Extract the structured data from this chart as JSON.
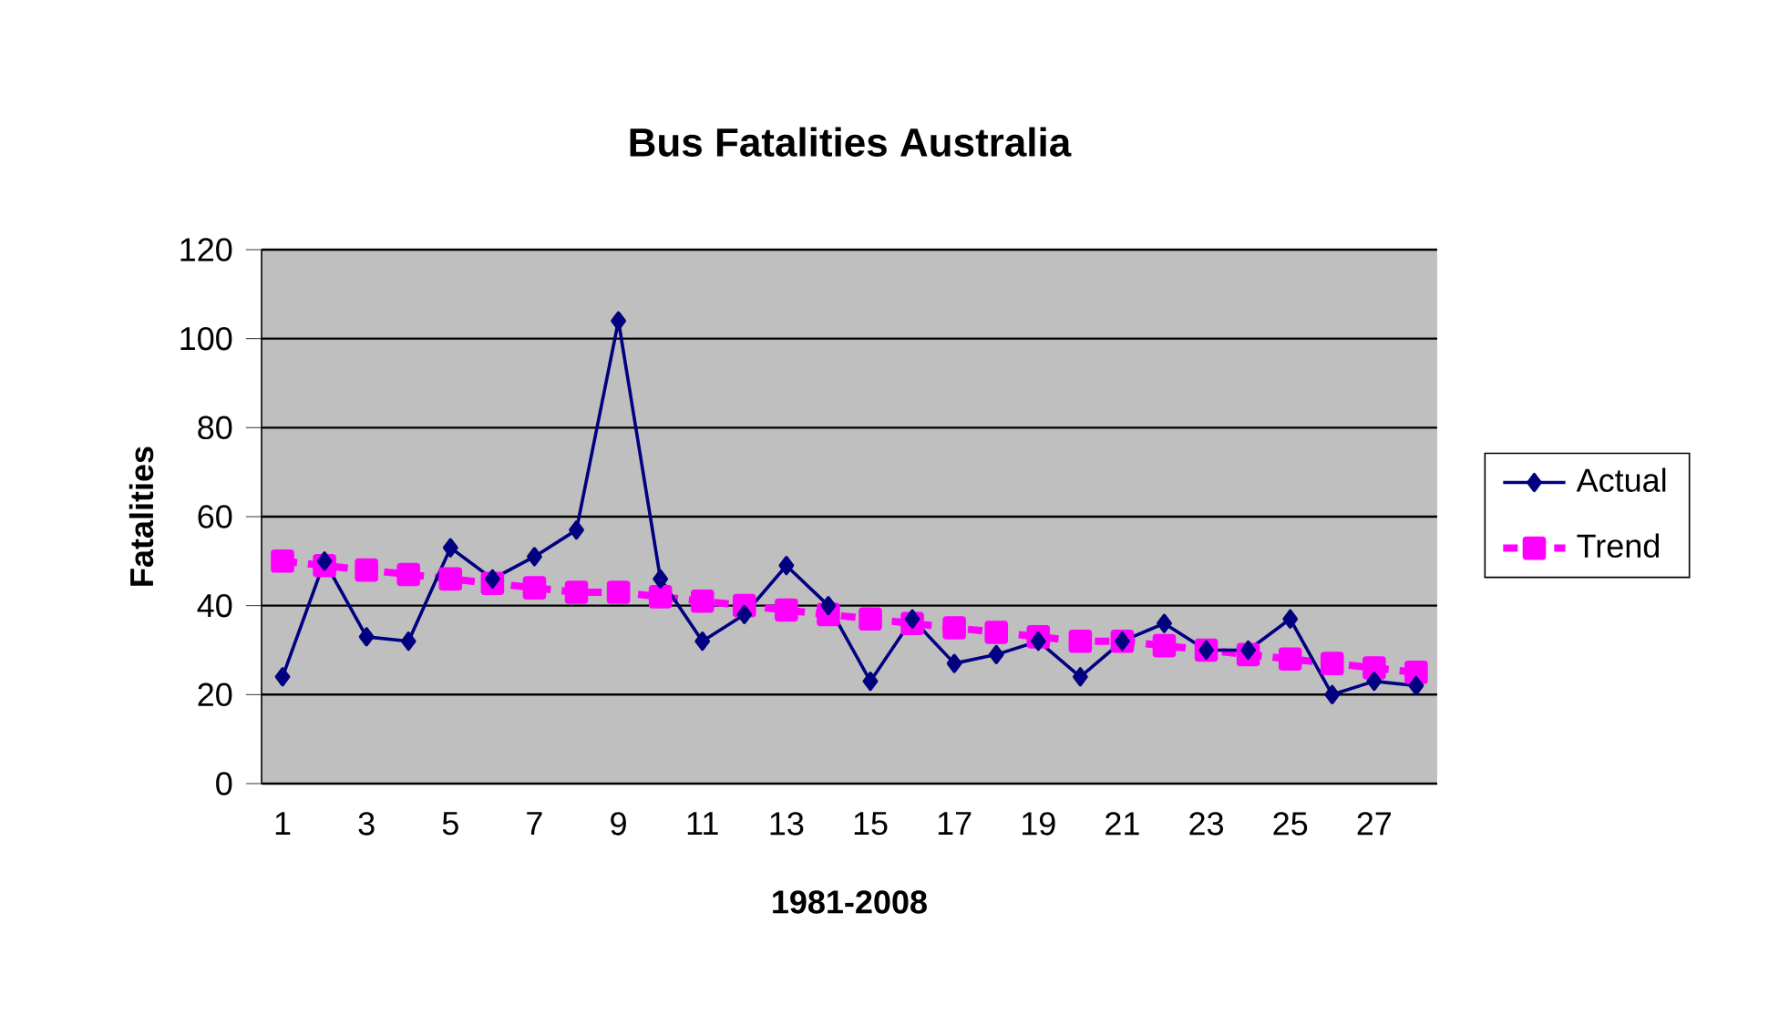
{
  "chart_data": {
    "type": "line",
    "title": "Bus Fatalities Australia",
    "xlabel": "1981-2008",
    "ylabel": "Fatalities",
    "categories": [
      "1",
      null,
      "3",
      null,
      "5",
      null,
      "7",
      null,
      "9",
      null,
      "11",
      null,
      "13",
      null,
      "15",
      null,
      "17",
      null,
      "19",
      null,
      "21",
      null,
      "23",
      null,
      "25",
      null,
      "27",
      null
    ],
    "series": [
      {
        "name": "Actual",
        "color": "#000080",
        "marker": "diamond",
        "values": [
          24,
          50,
          33,
          32,
          53,
          46,
          51,
          57,
          104,
          46,
          32,
          38,
          49,
          40,
          23,
          37,
          27,
          29,
          32,
          24,
          32,
          36,
          30,
          30,
          37,
          20,
          23,
          22
        ]
      },
      {
        "name": "Trend",
        "color": "#ff00ff",
        "marker": "square",
        "line_style": "dashed",
        "values": [
          50,
          49,
          48,
          47,
          46,
          45,
          44,
          43,
          43,
          42,
          41,
          40,
          39,
          38,
          37,
          36,
          35,
          34,
          33,
          32,
          32,
          31,
          30,
          29,
          28,
          27,
          26,
          25
        ]
      }
    ],
    "ylim": [
      0,
      120
    ],
    "yticks": [
      0,
      20,
      40,
      60,
      80,
      100,
      120
    ],
    "grid": "y",
    "legend": "right"
  }
}
